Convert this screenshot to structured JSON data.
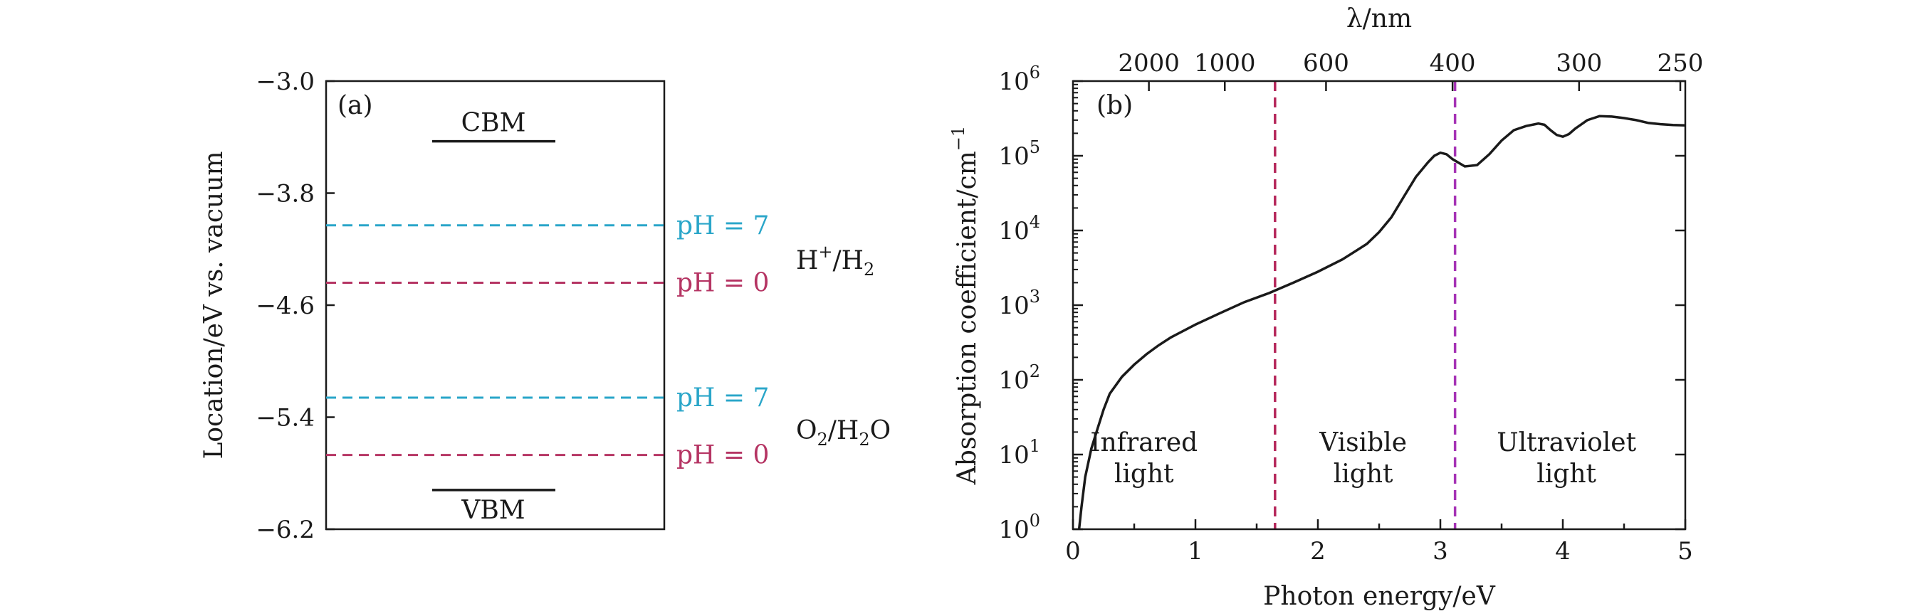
{
  "chart_data": [
    {
      "type": "line",
      "panel_label": "(a)",
      "ylabel": "Location/eV vs. vacuum",
      "xlabel": "",
      "ylim": [
        -6.2,
        -3.0
      ],
      "yticks": [
        "−3.0",
        "−3.8",
        "−4.6",
        "−5.4",
        "−6.2"
      ],
      "ytick_values": [
        -3.0,
        -3.8,
        -4.6,
        -5.4,
        -6.2
      ],
      "levels": [
        {
          "name": "CBM",
          "value": -3.43,
          "style": "solid",
          "color": "#1a1a1a"
        },
        {
          "name": "VBM",
          "value": -5.92,
          "style": "solid",
          "color": "#1a1a1a"
        }
      ],
      "redox_lines": [
        {
          "label": "pH = 7",
          "value": -4.03,
          "couple": "H+/H2",
          "color": "#2aa6c9"
        },
        {
          "label": "pH = 0",
          "value": -4.44,
          "couple": "H+/H2",
          "color": "#b53463"
        },
        {
          "label": "pH = 7",
          "value": -5.26,
          "couple": "O2/H2O",
          "color": "#2aa6c9"
        },
        {
          "label": "pH = 0",
          "value": -5.67,
          "couple": "O2/H2O",
          "color": "#b53463"
        }
      ],
      "couples": [
        {
          "name": "H+/H2",
          "display": {
            "base1": "H",
            "sup1": "+",
            "mid": "/H",
            "sub1": "2"
          }
        },
        {
          "name": "O2/H2O",
          "display": {
            "base1": "O",
            "sub1": "2",
            "mid": "/H",
            "sub2": "2",
            "end": "O"
          }
        }
      ]
    },
    {
      "type": "line",
      "panel_label": "(b)",
      "xlabel": "Photon energy/eV",
      "ylabel": "Absorption coefficient/cm",
      "ylabel_sup": "−1",
      "top_xlabel": "λ/nm",
      "xlim": [
        0,
        5
      ],
      "ylim_log10": [
        0,
        6
      ],
      "y_scale": "log",
      "grid": false,
      "xticks": [
        "0",
        "1",
        "2",
        "3",
        "4",
        "5"
      ],
      "ytick_base": "10",
      "ytick_exponents": [
        "0",
        "1",
        "2",
        "3",
        "4",
        "5",
        "6"
      ],
      "top_ticks": [
        {
          "label": "2000",
          "nm": 2000
        },
        {
          "label": "1000",
          "nm": 1000
        },
        {
          "label": "600",
          "nm": 600
        },
        {
          "label": "400",
          "nm": 400
        },
        {
          "label": "300",
          "nm": 300
        },
        {
          "label": "250",
          "nm": 250
        }
      ],
      "region_boundaries": [
        {
          "x": 1.65,
          "color": "#b5265a"
        },
        {
          "x": 3.12,
          "color": "#a532b5"
        }
      ],
      "regions": [
        {
          "line1": "Infrared",
          "line2": "light",
          "x": 0.58
        },
        {
          "line1": "Visible",
          "line2": "light",
          "x": 2.37
        },
        {
          "line1": "Ultraviolet",
          "line2": "light",
          "x": 4.03
        }
      ],
      "series": [
        {
          "color": "#1a1a1a",
          "x": [
            0.05,
            0.07,
            0.1,
            0.15,
            0.2,
            0.25,
            0.3,
            0.4,
            0.5,
            0.6,
            0.7,
            0.8,
            1.0,
            1.2,
            1.4,
            1.6,
            1.8,
            2.0,
            2.2,
            2.4,
            2.5,
            2.6,
            2.7,
            2.8,
            2.9,
            2.95,
            3.0,
            3.05,
            3.1,
            3.2,
            3.3,
            3.4,
            3.5,
            3.6,
            3.7,
            3.8,
            3.85,
            3.9,
            3.95,
            4.0,
            4.05,
            4.1,
            4.2,
            4.3,
            4.4,
            4.5,
            4.6,
            4.7,
            4.8,
            4.9,
            5.0
          ],
          "y": [
            1,
            2,
            5,
            12,
            22,
            40,
            65,
            110,
            160,
            220,
            290,
            370,
            550,
            780,
            1100,
            1450,
            2000,
            2800,
            4100,
            6600,
            9500,
            15000,
            28000,
            52000,
            82000,
            100000,
            110000,
            105000,
            90000,
            72000,
            75000,
            105000,
            160000,
            220000,
            250000,
            270000,
            260000,
            220000,
            190000,
            180000,
            195000,
            230000,
            300000,
            340000,
            335000,
            320000,
            300000,
            275000,
            265000,
            258000,
            255000
          ]
        }
      ]
    }
  ]
}
